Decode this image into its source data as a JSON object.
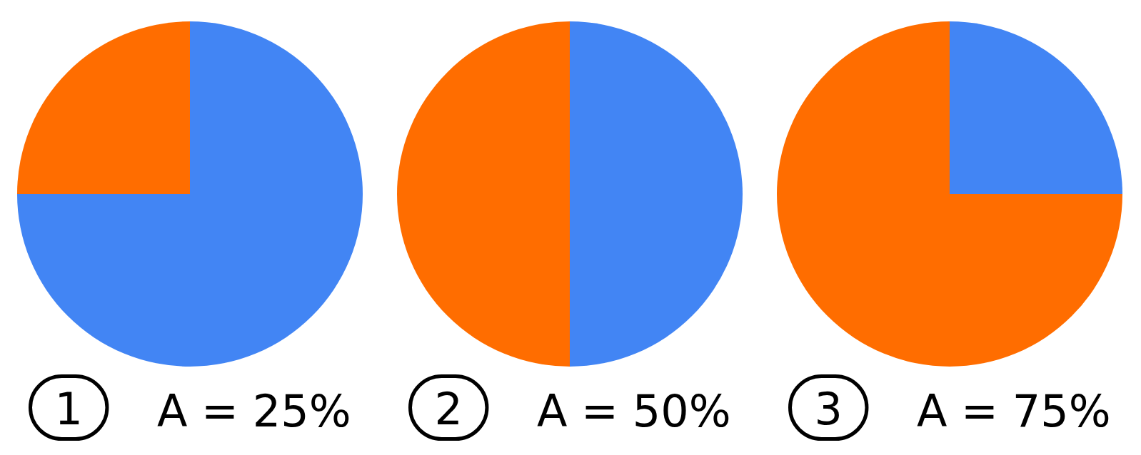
{
  "chart_data": [
    {
      "type": "pie",
      "title": "A = 25%",
      "annotations": [
        "1"
      ],
      "categories": [
        null,
        null
      ],
      "values": [
        75,
        25
      ],
      "colors": [
        "#4285f4",
        "#ff6d00"
      ]
    },
    {
      "type": "pie",
      "title": "A = 50%",
      "annotations": [
        "2"
      ],
      "categories": [
        null,
        null
      ],
      "values": [
        50,
        50
      ],
      "colors": [
        "#4285f4",
        "#ff6d00"
      ]
    },
    {
      "type": "pie",
      "title": "A = 75%",
      "annotations": [
        "3"
      ],
      "categories": [
        null,
        null
      ],
      "values": [
        25,
        75
      ],
      "colors": [
        "#4285f4",
        "#ff6d00"
      ]
    }
  ]
}
